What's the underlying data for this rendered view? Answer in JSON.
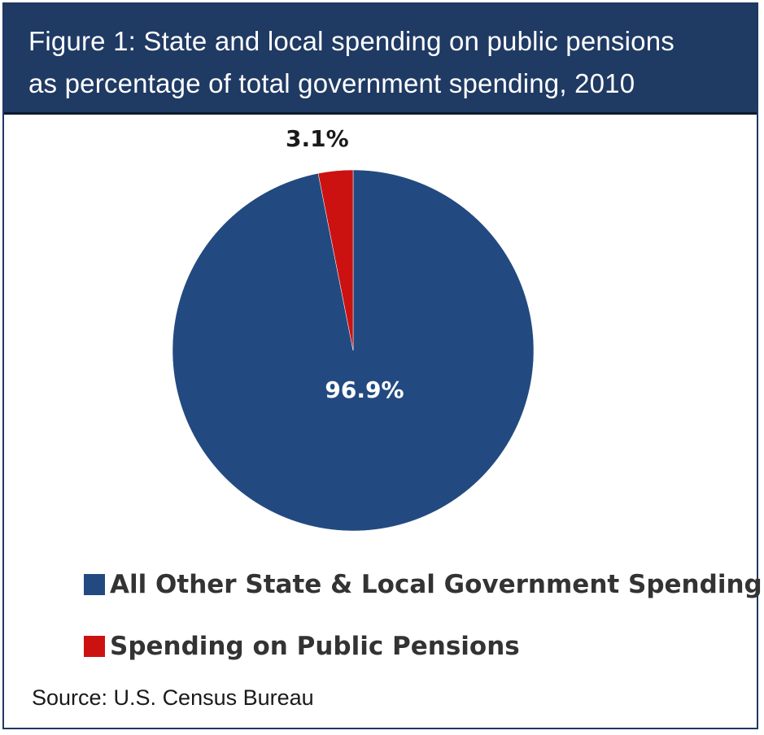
{
  "title": {
    "line1": "Figure 1: State and local spending on public pensions",
    "line2": "as percentage of total government spending, 2010"
  },
  "chart_data": {
    "type": "pie",
    "categories": [
      "All Other State & Local Government Spending",
      "Spending on Public Pensions"
    ],
    "values": [
      96.9,
      3.1
    ],
    "data_labels": [
      "96.9%",
      "3.1%"
    ],
    "colors": [
      "#224a80",
      "#cc1111"
    ],
    "legend_position": "bottom-left"
  },
  "source": "Source: U.S. Census Bureau"
}
